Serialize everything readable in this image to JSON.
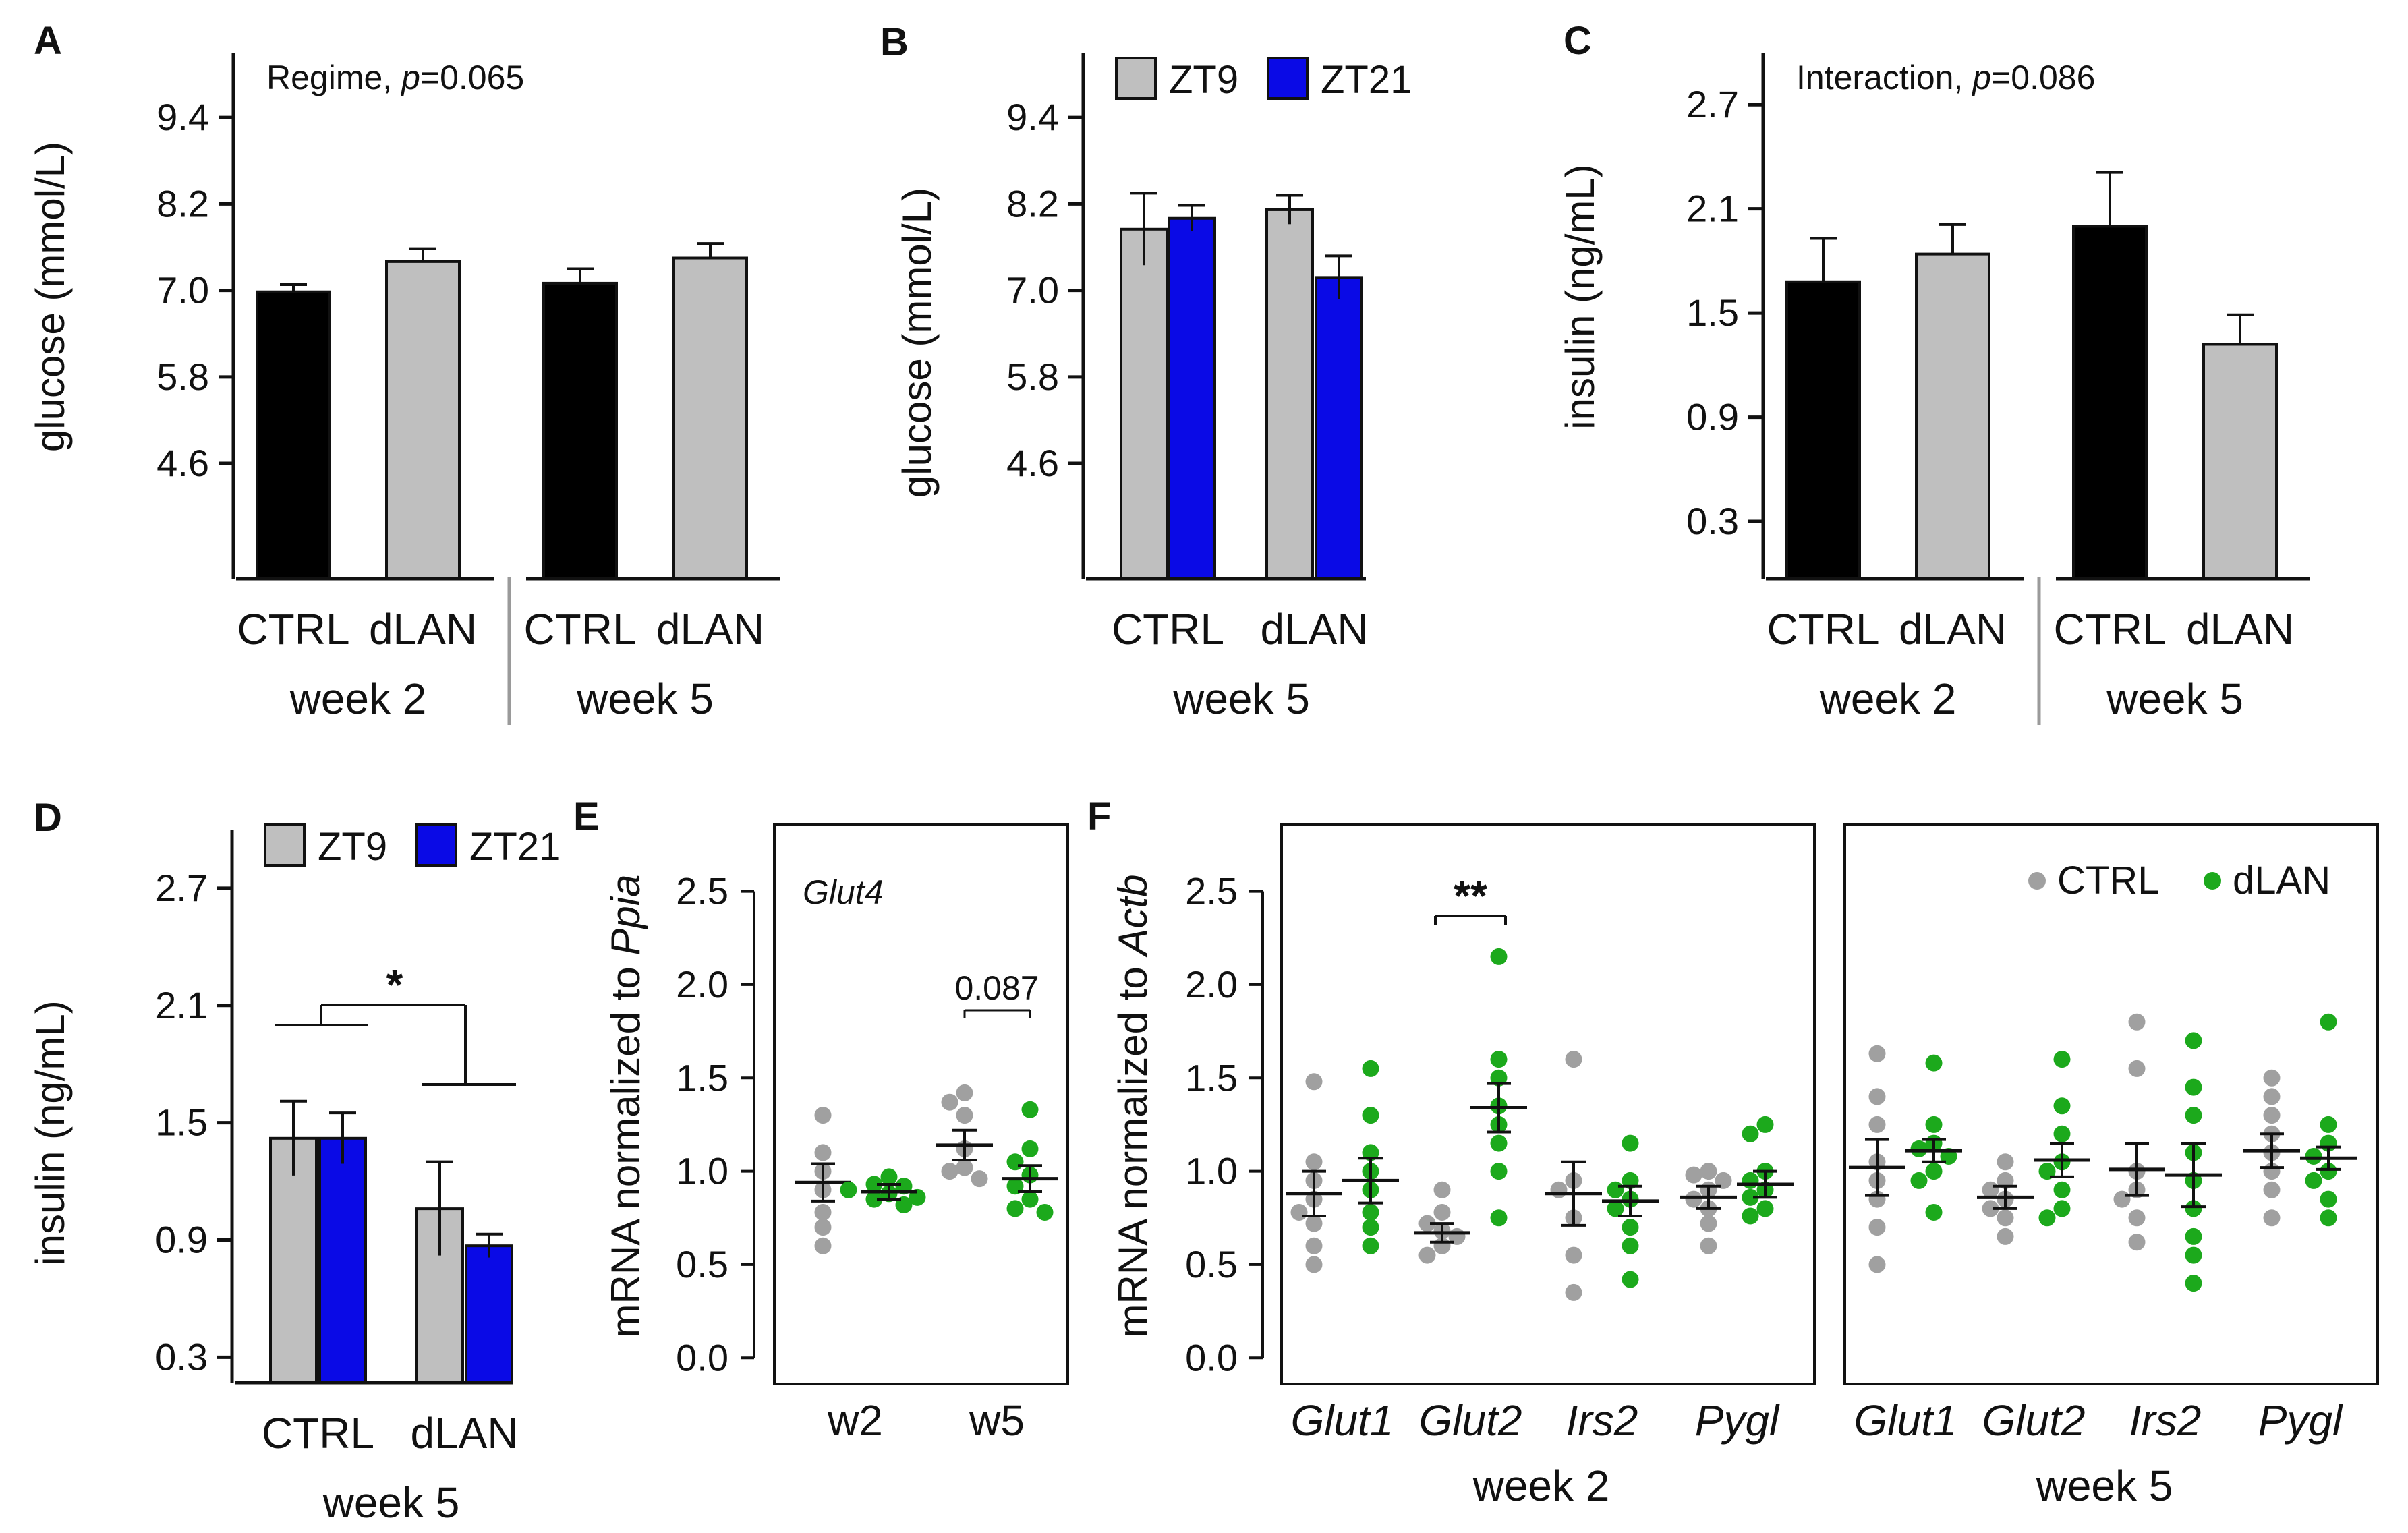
{
  "colors": {
    "ctrl_bar": "#000000",
    "dlan_bar": "#bfbfbf",
    "zt9": "#bfbfbf",
    "zt21": "#0a0ae6",
    "ctrl_dot": "#a0a0a0",
    "dlan_dot": "#1ca91c",
    "axis": "#111111",
    "divider": "#9a9a9a"
  },
  "chart_data": [
    {
      "panel": "A",
      "type": "bar",
      "ylabel": "glucose (mmol/L)",
      "yticks": [
        4.6,
        5.8,
        7.0,
        8.2,
        9.4
      ],
      "ylim": [
        3.0,
        10.3
      ],
      "annotation": {
        "prefix": "Regime, ",
        "p": "p",
        "suffix": "=0.065"
      },
      "groups": [
        {
          "label": "week 2",
          "bars": [
            {
              "cat": "CTRL",
              "value": 6.98,
              "err": 0.1,
              "color": "ctrl"
            },
            {
              "cat": "dLAN",
              "value": 7.4,
              "err": 0.18,
              "color": "dlan"
            }
          ]
        },
        {
          "label": "week 5",
          "bars": [
            {
              "cat": "CTRL",
              "value": 7.1,
              "err": 0.2,
              "color": "ctrl"
            },
            {
              "cat": "dLAN",
              "value": 7.45,
              "err": 0.2,
              "color": "dlan"
            }
          ]
        }
      ]
    },
    {
      "panel": "B",
      "type": "bar",
      "ylabel": "glucose (mmol/L)",
      "yticks": [
        4.6,
        5.8,
        7.0,
        8.2,
        9.4
      ],
      "ylim": [
        3.0,
        10.3
      ],
      "legend": [
        {
          "label": "ZT9",
          "color": "zt9"
        },
        {
          "label": "ZT21",
          "color": "zt21"
        }
      ],
      "groups": [
        {
          "label": "week 5",
          "cats": [
            "CTRL",
            "dLAN"
          ],
          "bars": [
            {
              "cat": "CTRL",
              "series": "ZT9",
              "value": 7.85,
              "err": 0.5,
              "color": "zt9"
            },
            {
              "cat": "CTRL",
              "series": "ZT21",
              "value": 8.0,
              "err": 0.18,
              "color": "zt21"
            },
            {
              "cat": "dLAN",
              "series": "ZT9",
              "value": 8.12,
              "err": 0.2,
              "color": "zt9"
            },
            {
              "cat": "dLAN",
              "series": "ZT21",
              "value": 7.18,
              "err": 0.3,
              "color": "zt21"
            }
          ]
        }
      ]
    },
    {
      "panel": "C",
      "type": "bar",
      "ylabel": "insulin (ng/mL)",
      "yticks": [
        0.3,
        0.9,
        1.5,
        2.1,
        2.7
      ],
      "ylim": [
        -0.03,
        3.0
      ],
      "annotation": {
        "prefix": "Interaction, ",
        "p": "p",
        "suffix": "=0.086"
      },
      "groups": [
        {
          "label": "week 2",
          "bars": [
            {
              "cat": "CTRL",
              "value": 1.68,
              "err": 0.25,
              "color": "ctrl"
            },
            {
              "cat": "dLAN",
              "value": 1.84,
              "err": 0.17,
              "color": "dlan"
            }
          ]
        },
        {
          "label": "week 5",
          "bars": [
            {
              "cat": "CTRL",
              "value": 2.0,
              "err": 0.31,
              "color": "ctrl"
            },
            {
              "cat": "dLAN",
              "value": 1.32,
              "err": 0.17,
              "color": "dlan"
            }
          ]
        }
      ]
    },
    {
      "panel": "D",
      "type": "bar",
      "ylabel": "insulin (ng/mL)",
      "yticks": [
        0.3,
        0.9,
        1.5,
        2.1,
        2.7
      ],
      "ylim": [
        0.17,
        3.0
      ],
      "legend": [
        {
          "label": "ZT9",
          "color": "zt9"
        },
        {
          "label": "ZT21",
          "color": "zt21"
        }
      ],
      "significance": "*",
      "groups": [
        {
          "label": "week 5",
          "cats": [
            "CTRL",
            "dLAN"
          ],
          "bars": [
            {
              "cat": "CTRL",
              "series": "ZT9",
              "value": 1.42,
              "err": 0.19,
              "color": "zt9"
            },
            {
              "cat": "CTRL",
              "series": "ZT21",
              "value": 1.42,
              "err": 0.13,
              "color": "zt21"
            },
            {
              "cat": "dLAN",
              "series": "ZT9",
              "value": 1.06,
              "err": 0.24,
              "color": "zt9"
            },
            {
              "cat": "dLAN",
              "series": "ZT21",
              "value": 0.87,
              "err": 0.06,
              "color": "zt21"
            }
          ]
        }
      ]
    },
    {
      "panel": "E",
      "type": "scatter",
      "ylabel_prefix": "mRNA normalized to ",
      "ylabel_gene": "Ppia",
      "yticks": [
        0.0,
        0.5,
        1.0,
        1.5,
        2.0,
        2.5
      ],
      "ylim": [
        -0.14,
        2.86
      ],
      "gene": "Glut4",
      "comparison": {
        "label": "0.087"
      },
      "categories": [
        "w2",
        "w5"
      ],
      "points": [
        {
          "cat": "w2",
          "group": "CTRL",
          "mean": 0.94,
          "se": 0.1,
          "values": [
            1.3,
            1.1,
            1.0,
            0.9,
            0.78,
            0.7,
            0.6
          ]
        },
        {
          "cat": "w2",
          "group": "dLAN",
          "mean": 0.89,
          "se": 0.04,
          "values": [
            0.97,
            0.93,
            0.92,
            0.9,
            0.88,
            0.86,
            0.85,
            0.82
          ]
        },
        {
          "cat": "w5",
          "group": "CTRL",
          "mean": 1.14,
          "se": 0.08,
          "values": [
            1.42,
            1.37,
            1.3,
            1.12,
            1.02,
            1.0,
            0.96
          ]
        },
        {
          "cat": "w5",
          "group": "dLAN",
          "mean": 0.96,
          "se": 0.07,
          "values": [
            1.33,
            1.12,
            1.05,
            0.98,
            0.92,
            0.85,
            0.8,
            0.78
          ]
        }
      ]
    },
    {
      "panel": "F",
      "type": "scatter",
      "ylabel_prefix": "mRNA normalized to ",
      "ylabel_gene": "Actb",
      "yticks": [
        0.0,
        0.5,
        1.0,
        1.5,
        2.0,
        2.5
      ],
      "ylim": [
        -0.14,
        2.86
      ],
      "legend": [
        {
          "label": "CTRL",
          "color": "ctrl_dot"
        },
        {
          "label": "dLAN",
          "color": "dlan_dot"
        }
      ],
      "subpanels": [
        {
          "label": "week 2",
          "genes": [
            "Glut1",
            "Glut2",
            "Irs2",
            "Pygl"
          ],
          "significance": {
            "gene": "Glut2",
            "label": "**"
          },
          "points": [
            {
              "gene": "Glut1",
              "group": "CTRL",
              "mean": 0.88,
              "se": 0.12,
              "values": [
                1.48,
                1.05,
                0.95,
                0.85,
                0.78,
                0.72,
                0.6,
                0.5
              ]
            },
            {
              "gene": "Glut1",
              "group": "dLAN",
              "mean": 0.95,
              "se": 0.12,
              "values": [
                1.55,
                1.3,
                1.1,
                1.0,
                0.9,
                0.78,
                0.7,
                0.6
              ]
            },
            {
              "gene": "Glut2",
              "group": "CTRL",
              "mean": 0.67,
              "se": 0.05,
              "values": [
                0.9,
                0.78,
                0.72,
                0.68,
                0.65,
                0.6,
                0.55
              ]
            },
            {
              "gene": "Glut2",
              "group": "dLAN",
              "mean": 1.34,
              "se": 0.13,
              "values": [
                2.15,
                1.6,
                1.5,
                1.35,
                1.25,
                1.15,
                1.0,
                0.75
              ]
            },
            {
              "gene": "Irs2",
              "group": "CTRL",
              "mean": 0.88,
              "se": 0.17,
              "values": [
                1.6,
                0.95,
                0.9,
                0.75,
                0.55,
                0.35
              ]
            },
            {
              "gene": "Irs2",
              "group": "dLAN",
              "mean": 0.84,
              "se": 0.08,
              "values": [
                1.15,
                0.95,
                0.9,
                0.85,
                0.8,
                0.7,
                0.6,
                0.42
              ]
            },
            {
              "gene": "Pygl",
              "group": "CTRL",
              "mean": 0.86,
              "se": 0.06,
              "values": [
                1.0,
                0.98,
                0.95,
                0.9,
                0.85,
                0.8,
                0.72,
                0.6
              ]
            },
            {
              "gene": "Pygl",
              "group": "dLAN",
              "mean": 0.93,
              "se": 0.07,
              "values": [
                1.25,
                1.2,
                1.0,
                0.95,
                0.9,
                0.86,
                0.8,
                0.76
              ]
            }
          ]
        },
        {
          "label": "week 5",
          "genes": [
            "Glut1",
            "Glut2",
            "Irs2",
            "Pygl"
          ],
          "points": [
            {
              "gene": "Glut1",
              "group": "CTRL",
              "mean": 1.02,
              "se": 0.15,
              "values": [
                1.63,
                1.4,
                1.25,
                1.05,
                0.95,
                0.85,
                0.7,
                0.5
              ]
            },
            {
              "gene": "Glut1",
              "group": "dLAN",
              "mean": 1.11,
              "se": 0.06,
              "values": [
                1.58,
                1.25,
                1.15,
                1.12,
                1.08,
                1.0,
                0.95,
                0.78
              ]
            },
            {
              "gene": "Glut2",
              "group": "CTRL",
              "mean": 0.86,
              "se": 0.06,
              "values": [
                1.05,
                0.95,
                0.9,
                0.85,
                0.8,
                0.75,
                0.65
              ]
            },
            {
              "gene": "Glut2",
              "group": "dLAN",
              "mean": 1.06,
              "se": 0.09,
              "values": [
                1.6,
                1.35,
                1.2,
                1.05,
                1.0,
                0.9,
                0.8,
                0.75
              ]
            },
            {
              "gene": "Irs2",
              "group": "CTRL",
              "mean": 1.01,
              "se": 0.14,
              "values": [
                1.8,
                1.55,
                1.0,
                0.9,
                0.85,
                0.75,
                0.62
              ]
            },
            {
              "gene": "Irs2",
              "group": "dLAN",
              "mean": 0.98,
              "se": 0.17,
              "values": [
                1.7,
                1.45,
                1.3,
                1.1,
                0.95,
                0.8,
                0.65,
                0.55,
                0.4
              ]
            },
            {
              "gene": "Pygl",
              "group": "CTRL",
              "mean": 1.11,
              "se": 0.09,
              "values": [
                1.5,
                1.4,
                1.3,
                1.2,
                1.1,
                1.0,
                0.9,
                0.75
              ]
            },
            {
              "gene": "Pygl",
              "group": "dLAN",
              "mean": 1.07,
              "se": 0.06,
              "values": [
                1.8,
                1.25,
                1.15,
                1.08,
                1.0,
                0.95,
                0.85,
                0.75
              ]
            }
          ]
        }
      ]
    }
  ]
}
